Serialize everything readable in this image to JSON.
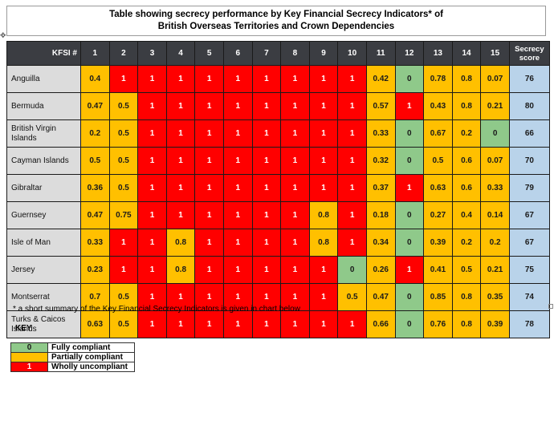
{
  "title": {
    "line1": "Table showing secrecy performance by Key Financial Secrecy Indicators* of",
    "line2": "British Overseas Territories and Crown Dependencies"
  },
  "table": {
    "first_header": "KFSI #",
    "columns": [
      "1",
      "2",
      "3",
      "4",
      "5",
      "6",
      "7",
      "8",
      "9",
      "10",
      "11",
      "12",
      "13",
      "14",
      "15"
    ],
    "score_header": "Secrecy score",
    "rows": [
      {
        "name": "Anguilla",
        "values": [
          "0.4",
          "1",
          "1",
          "1",
          "1",
          "1",
          "1",
          "1",
          "1",
          "1",
          "0.42",
          "0",
          "0.78",
          "0.8",
          "0.07"
        ],
        "score": "76"
      },
      {
        "name": "Bermuda",
        "values": [
          "0.47",
          "0.5",
          "1",
          "1",
          "1",
          "1",
          "1",
          "1",
          "1",
          "1",
          "0.57",
          "1",
          "0.43",
          "0.8",
          "0.21"
        ],
        "score": "80"
      },
      {
        "name": "British Virgin Islands",
        "values": [
          "0.2",
          "0.5",
          "1",
          "1",
          "1",
          "1",
          "1",
          "1",
          "1",
          "1",
          "0.33",
          "0",
          "0.67",
          "0.2",
          "0"
        ],
        "score": "66"
      },
      {
        "name": "Cayman Islands",
        "values": [
          "0.5",
          "0.5",
          "1",
          "1",
          "1",
          "1",
          "1",
          "1",
          "1",
          "1",
          "0.32",
          "0",
          "0.5",
          "0.6",
          "0.07"
        ],
        "score": "70"
      },
      {
        "name": "Gibraltar",
        "values": [
          "0.36",
          "0.5",
          "1",
          "1",
          "1",
          "1",
          "1",
          "1",
          "1",
          "1",
          "0.37",
          "1",
          "0.63",
          "0.6",
          "0.33"
        ],
        "score": "79"
      },
      {
        "name": "Guernsey",
        "values": [
          "0.47",
          "0.75",
          "1",
          "1",
          "1",
          "1",
          "1",
          "1",
          "0.8",
          "1",
          "0.18",
          "0",
          "0.27",
          "0.4",
          "0.14"
        ],
        "score": "67"
      },
      {
        "name": "Isle of Man",
        "values": [
          "0.33",
          "1",
          "1",
          "0.8",
          "1",
          "1",
          "1",
          "1",
          "0.8",
          "1",
          "0.34",
          "0",
          "0.39",
          "0.2",
          "0.2"
        ],
        "score": "67"
      },
      {
        "name": "Jersey",
        "values": [
          "0.23",
          "1",
          "1",
          "0.8",
          "1",
          "1",
          "1",
          "1",
          "1",
          "0",
          "0.26",
          "1",
          "0.41",
          "0.5",
          "0.21"
        ],
        "score": "75"
      },
      {
        "name": "Montserrat",
        "values": [
          "0.7",
          "0.5",
          "1",
          "1",
          "1",
          "1",
          "1",
          "1",
          "1",
          "0.5",
          "0.47",
          "0",
          "0.85",
          "0.8",
          "0.35"
        ],
        "score": "74"
      },
      {
        "name": "Turks & Caicos Islands",
        "values": [
          "0.63",
          "0.5",
          "1",
          "1",
          "1",
          "1",
          "1",
          "1",
          "1",
          "1",
          "0.66",
          "0",
          "0.76",
          "0.8",
          "0.39"
        ],
        "score": "78"
      }
    ]
  },
  "footnote": "* a short summary of the Key Financial Secrecy Indicators is given in chart below",
  "key": {
    "heading": "KEY",
    "items": [
      {
        "swatch": "0",
        "label": "Fully compliant",
        "color": "#8fc98a"
      },
      {
        "swatch": "",
        "label": "Partially compliant",
        "color": "#ffc000"
      },
      {
        "swatch": "1",
        "label": "Wholly uncompliant",
        "color": "#ff0000"
      }
    ]
  }
}
